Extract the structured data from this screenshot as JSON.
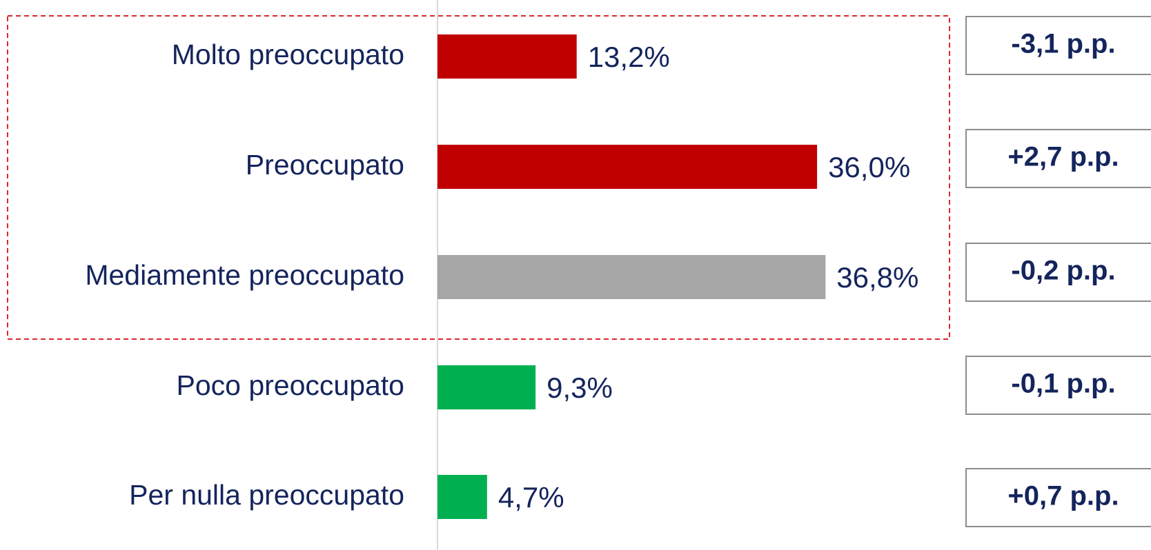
{
  "chart_data": {
    "type": "bar",
    "orientation": "horizontal",
    "categories": [
      "Molto preoccupato",
      "Preoccupato",
      "Mediamente preoccupato",
      "Poco preoccupato",
      "Per nulla preoccupato"
    ],
    "values": [
      13.2,
      36.0,
      36.8,
      9.3,
      4.7
    ],
    "value_labels": [
      "13,2%",
      "36,0%",
      "36,8%",
      "9,3%",
      "4,7%"
    ],
    "colors": [
      "#c00000",
      "#c00000",
      "#a6a6a6",
      "#00b050",
      "#00b050"
    ],
    "change_labels": [
      "-3,1 p.p.",
      "+2,7 p.p.",
      "-0,2 p.p.",
      "-0,1 p.p.",
      "+0,7 p.p."
    ],
    "xlim": [
      0,
      50
    ]
  }
}
